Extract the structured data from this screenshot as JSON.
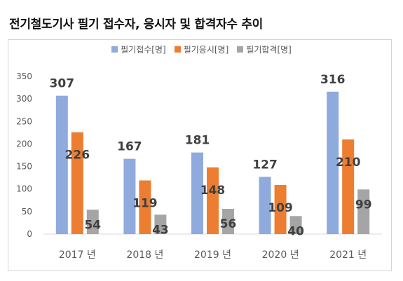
{
  "title": "전기철도기사 필기 접수자, 응시자 및 합격자수 추이",
  "chart_data": {
    "type": "bar",
    "categories": [
      "2017 년",
      "2018 년",
      "2019 년",
      "2020 년",
      "2021 년"
    ],
    "series": [
      {
        "name": "필기접수[명]",
        "values": [
          307,
          167,
          181,
          127,
          316
        ],
        "color": "#8FAADC"
      },
      {
        "name": "필기응시[명]",
        "values": [
          226,
          119,
          148,
          109,
          210
        ],
        "color": "#ED7D31"
      },
      {
        "name": "필기합격[명]",
        "values": [
          54,
          43,
          56,
          40,
          99
        ],
        "color": "#A5A5A5"
      }
    ],
    "y_ticks": [
      0,
      50,
      100,
      150,
      200,
      250,
      300,
      350
    ],
    "ylim": [
      0,
      350
    ],
    "legend_position": "top-center",
    "grid": false
  }
}
